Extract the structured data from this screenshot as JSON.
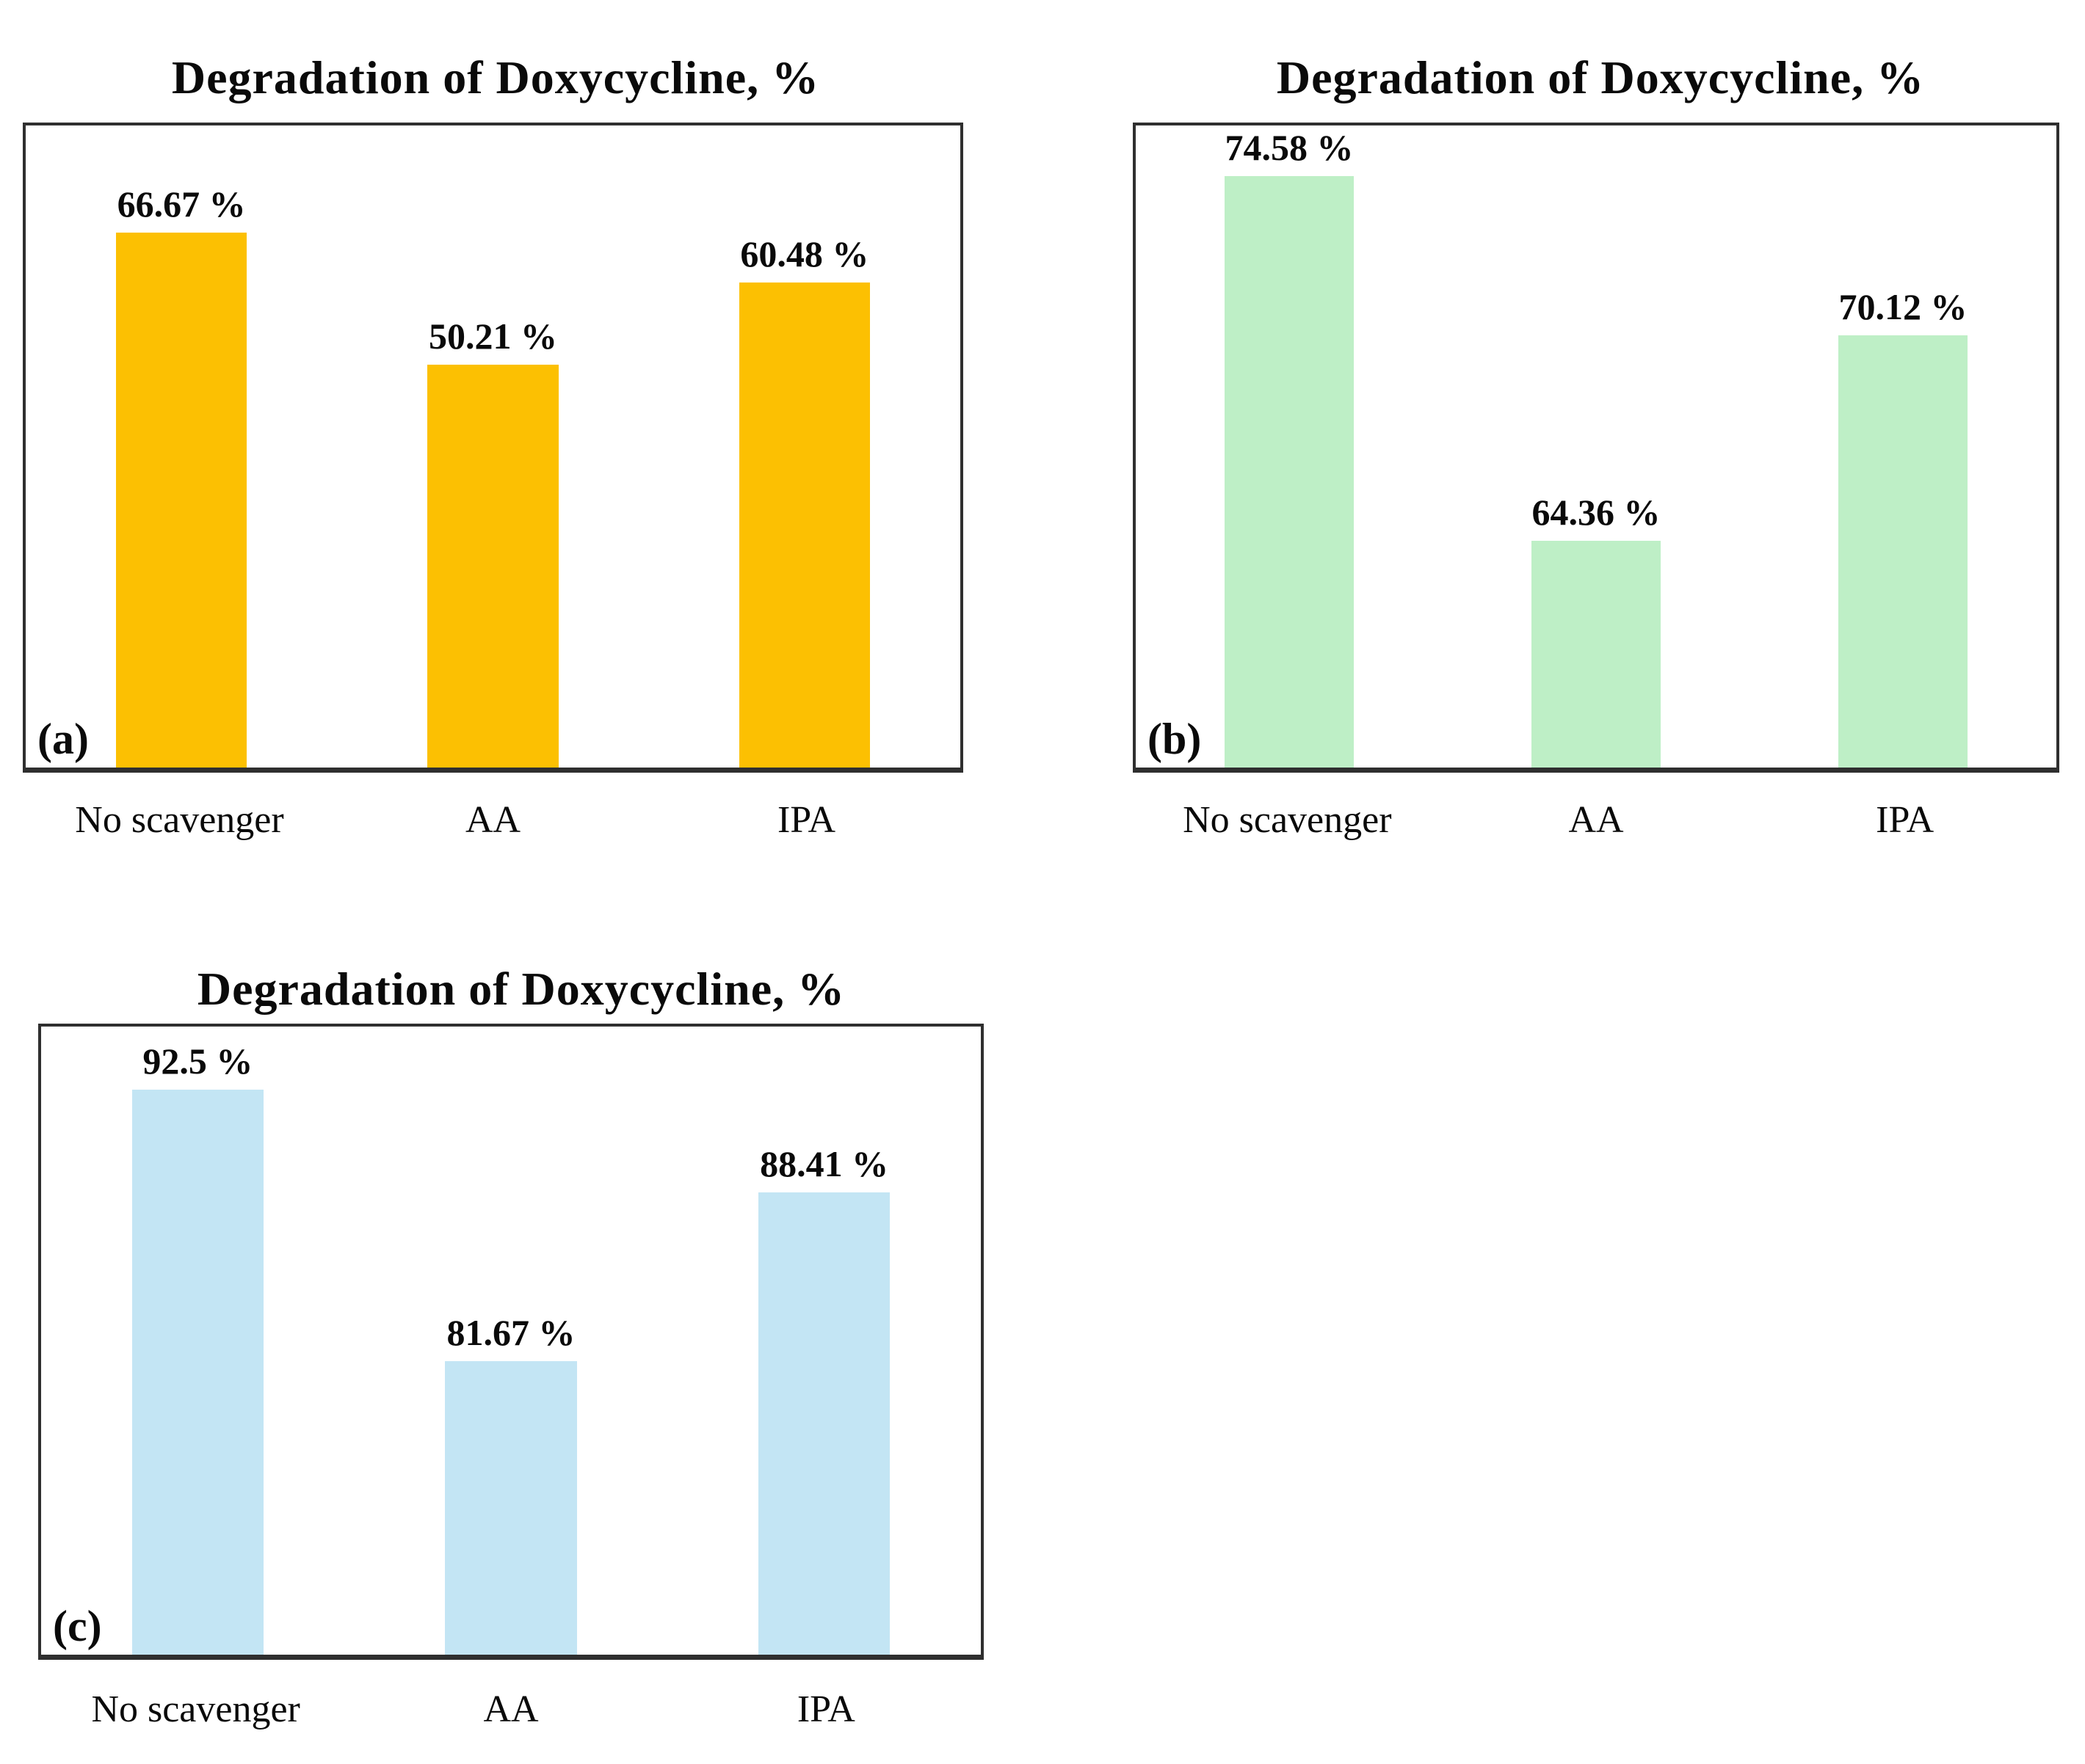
{
  "chart_data": [
    {
      "type": "bar",
      "panel_label": "(a)",
      "title": "Degradation of Doxycycline, %",
      "categories": [
        "No scavenger",
        "AA",
        "IPA"
      ],
      "values": [
        66.67,
        50.21,
        60.48
      ],
      "value_labels": [
        "66.67 %",
        "50.21 %",
        "60.48 %"
      ],
      "bar_color": "#FCC002",
      "ylim": [
        0,
        80
      ],
      "grid": "off",
      "legend": "none"
    },
    {
      "type": "bar",
      "panel_label": "(b)",
      "title": "Degradation of Doxycycline, %",
      "categories": [
        "No scavenger",
        "AA",
        "IPA"
      ],
      "values": [
        74.58,
        64.36,
        70.12
      ],
      "value_labels": [
        "74.58 %",
        "64.36 %",
        "70.12 %"
      ],
      "bar_color": "#BEEFC6",
      "ylim": [
        58,
        76
      ],
      "grid": "off",
      "legend": "none"
    },
    {
      "type": "bar",
      "panel_label": "(c)",
      "title": "Degradation of Doxycycline, %",
      "categories": [
        "No scavenger",
        "AA",
        "IPA"
      ],
      "values": [
        92.5,
        81.67,
        88.41
      ],
      "value_labels": [
        "92.5 %",
        "81.67 %",
        "88.41 %"
      ],
      "bar_color": "#C3E5F4",
      "ylim": [
        70,
        95
      ],
      "grid": "off",
      "legend": "none"
    }
  ],
  "colors": {
    "plot_border": "#2f2f2f",
    "text": "#0a0a0a",
    "background": "#ffffff"
  }
}
